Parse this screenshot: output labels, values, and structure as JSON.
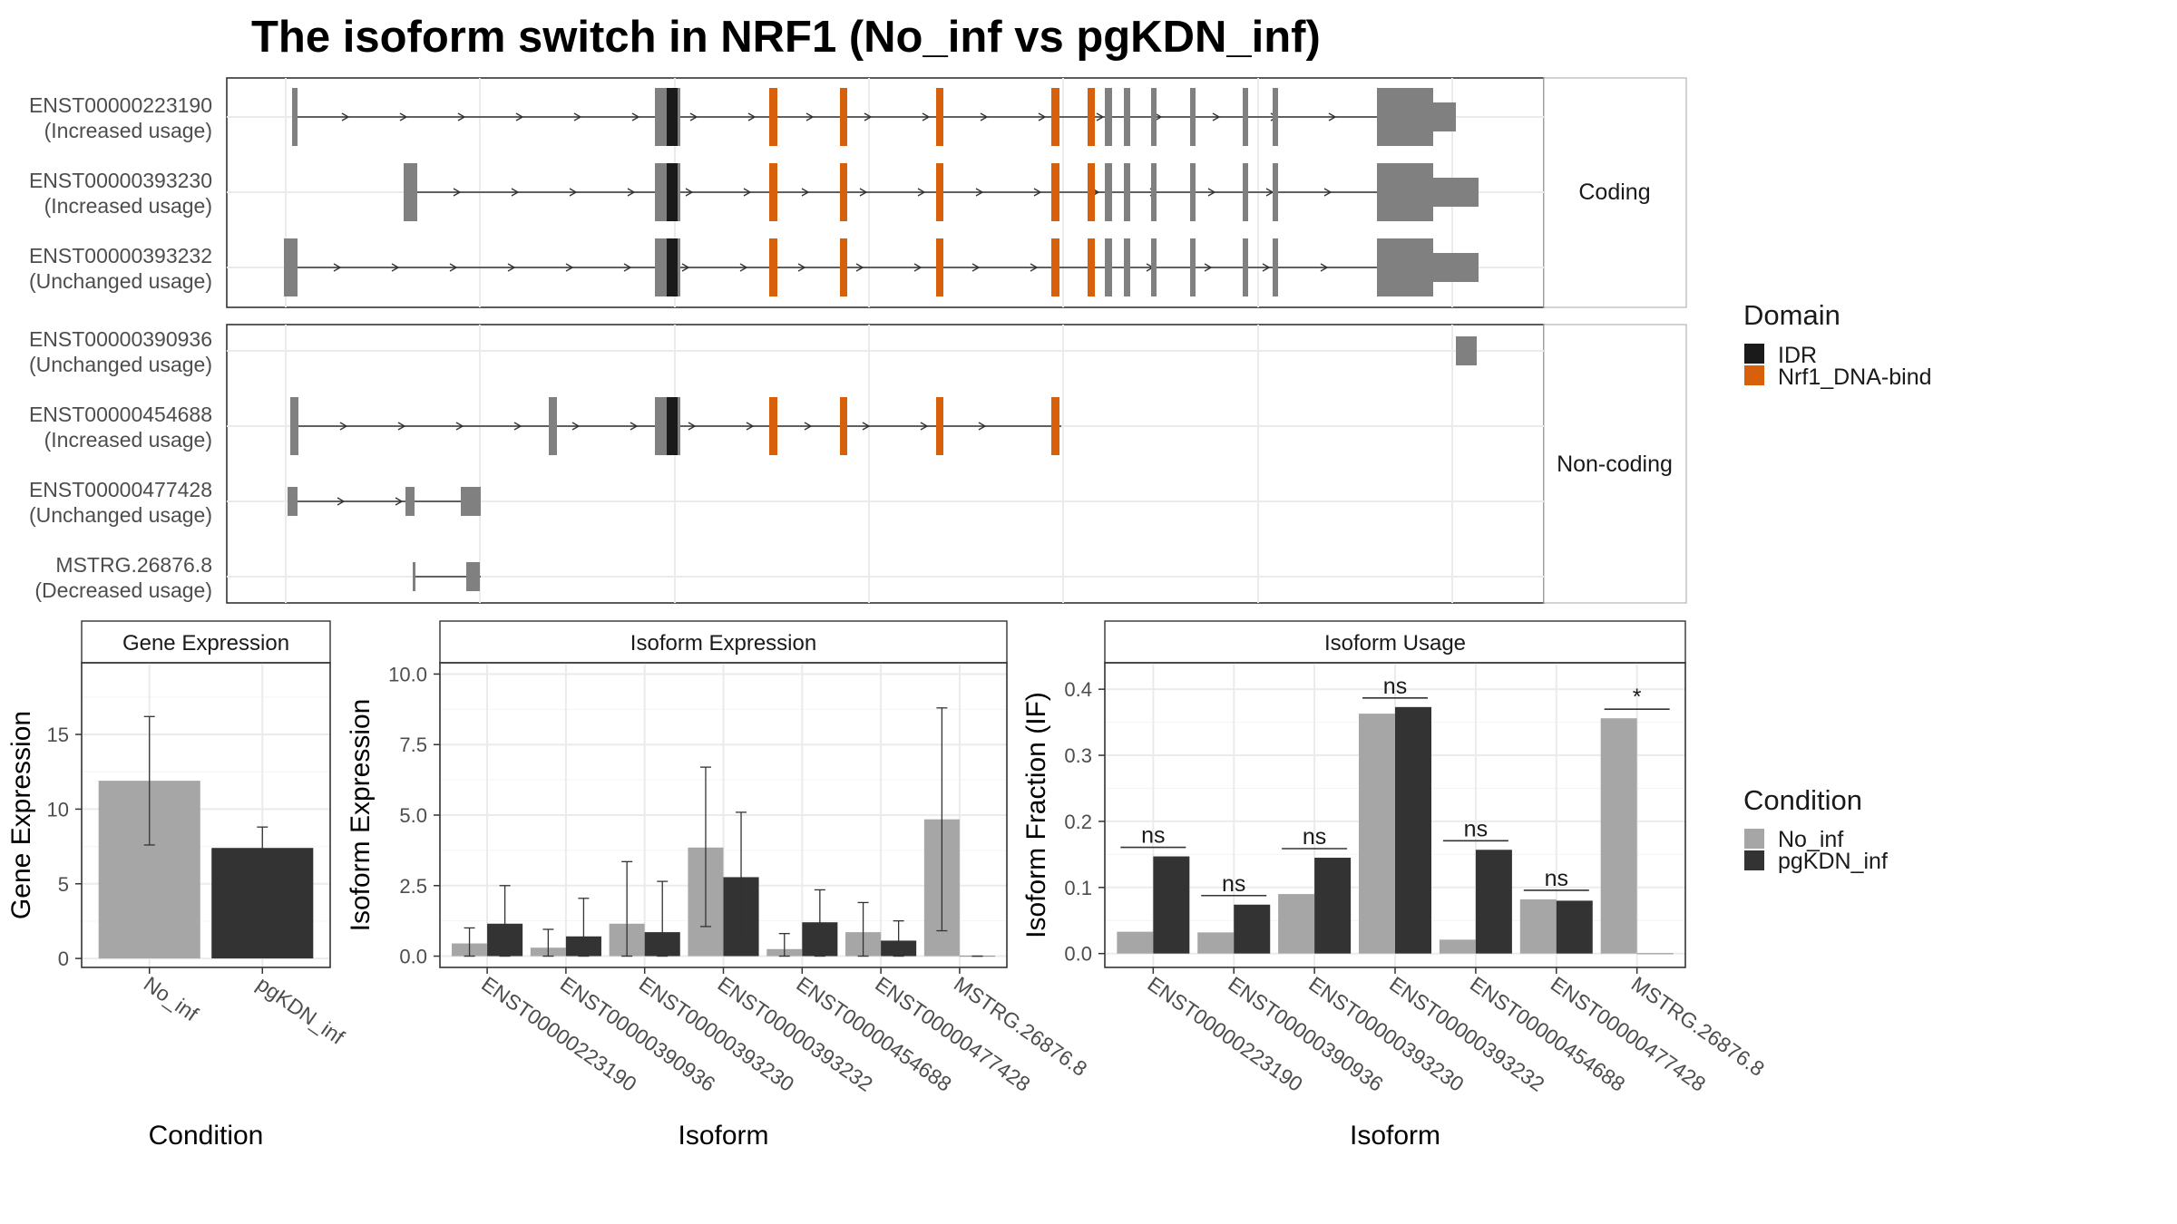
{
  "title": "The isoform switch in NRF1 (No_inf vs pgKDN_inf)",
  "colors": {
    "exon": "#808080",
    "idr": "#1a1a1a",
    "nrf1": "#d9600b",
    "no_inf": "#a6a6a6",
    "pgkdn_inf": "#333333",
    "grid": "#ebebeb",
    "strip": "#ffffff"
  },
  "structure": {
    "facets": [
      {
        "label": "Coding",
        "isoforms": [
          {
            "id": "ENST00000223190",
            "usage": "(Increased usage)"
          },
          {
            "id": "ENST00000393230",
            "usage": "(Increased usage)"
          },
          {
            "id": "ENST00000393232",
            "usage": "(Unchanged usage)"
          }
        ]
      },
      {
        "label": "Non-coding",
        "isoforms": [
          {
            "id": "ENST00000390936",
            "usage": "(Unchanged usage)"
          },
          {
            "id": "ENST00000454688",
            "usage": "(Increased usage)"
          },
          {
            "id": "ENST00000477428",
            "usage": "(Unchanged usage)"
          },
          {
            "id": "MSTRG.26876.8",
            "usage": "(Decreased usage)"
          }
        ]
      }
    ]
  },
  "legend_domain": {
    "title": "Domain",
    "items": [
      {
        "label": "IDR",
        "color": "#1a1a1a"
      },
      {
        "label": "Nrf1_DNA-bind",
        "color": "#d9600b"
      }
    ]
  },
  "legend_condition": {
    "title": "Condition",
    "items": [
      {
        "label": "No_inf",
        "color": "#a6a6a6"
      },
      {
        "label": "pgKDN_inf",
        "color": "#333333"
      }
    ]
  },
  "chart_data": [
    {
      "type": "bar",
      "title": "Gene Expression",
      "xlabel": "Condition",
      "ylabel": "Gene Expression",
      "categories": [
        "No_inf",
        "pgKDN_inf"
      ],
      "values": [
        11.9,
        7.4
      ],
      "error_low": [
        7.6,
        6.0
      ],
      "error_high": [
        16.2,
        8.8
      ],
      "yticks": [
        0,
        5,
        10,
        15
      ],
      "ylim": [
        -0.6,
        19.8
      ]
    },
    {
      "type": "bar",
      "title": "Isoform Expression",
      "xlabel": "Isoform",
      "ylabel": "Isoform Expression",
      "categories": [
        "ENST00000223190",
        "ENST00000390936",
        "ENST00000393230",
        "ENST00000393232",
        "ENST00000454688",
        "ENST00000477428",
        "MSTRG.26876.8"
      ],
      "series": [
        {
          "name": "No_inf",
          "values": [
            0.45,
            0.3,
            1.15,
            3.85,
            0.25,
            0.85,
            4.85
          ],
          "error_low": [
            0.0,
            0.0,
            0.0,
            1.05,
            0.0,
            0.0,
            0.9
          ],
          "error_high": [
            1.0,
            0.95,
            3.35,
            6.7,
            0.8,
            1.9,
            8.8
          ]
        },
        {
          "name": "pgKDN_inf",
          "values": [
            1.15,
            0.7,
            0.85,
            2.8,
            1.2,
            0.55,
            0.0
          ],
          "error_low": [
            0.0,
            0.0,
            0.0,
            0.5,
            0.0,
            0.0,
            0.0
          ],
          "error_high": [
            2.5,
            2.05,
            2.65,
            5.1,
            2.35,
            1.25,
            0.0
          ]
        }
      ],
      "yticks": [
        "0.0",
        "2.5",
        "5.0",
        "7.5",
        "10.0"
      ],
      "ylim": [
        -0.4,
        10.4
      ]
    },
    {
      "type": "bar",
      "title": "Isoform Usage",
      "xlabel": "Isoform",
      "ylabel": "Isoform Fraction (IF)",
      "categories": [
        "ENST00000223190",
        "ENST00000390936",
        "ENST00000393230",
        "ENST00000393232",
        "ENST00000454688",
        "ENST00000477428",
        "MSTRG.26876.8"
      ],
      "series": [
        {
          "name": "No_inf",
          "values": [
            0.033,
            0.032,
            0.09,
            0.363,
            0.021,
            0.082,
            0.356
          ]
        },
        {
          "name": "pgKDN_inf",
          "values": [
            0.147,
            0.074,
            0.145,
            0.373,
            0.157,
            0.08,
            0.0
          ]
        }
      ],
      "significance": [
        "ns",
        "ns",
        "ns",
        "ns",
        "ns",
        "ns",
        "*"
      ],
      "yticks": [
        "0.0",
        "0.1",
        "0.2",
        "0.3",
        "0.4"
      ],
      "ylim": [
        -0.021,
        0.44
      ]
    }
  ]
}
